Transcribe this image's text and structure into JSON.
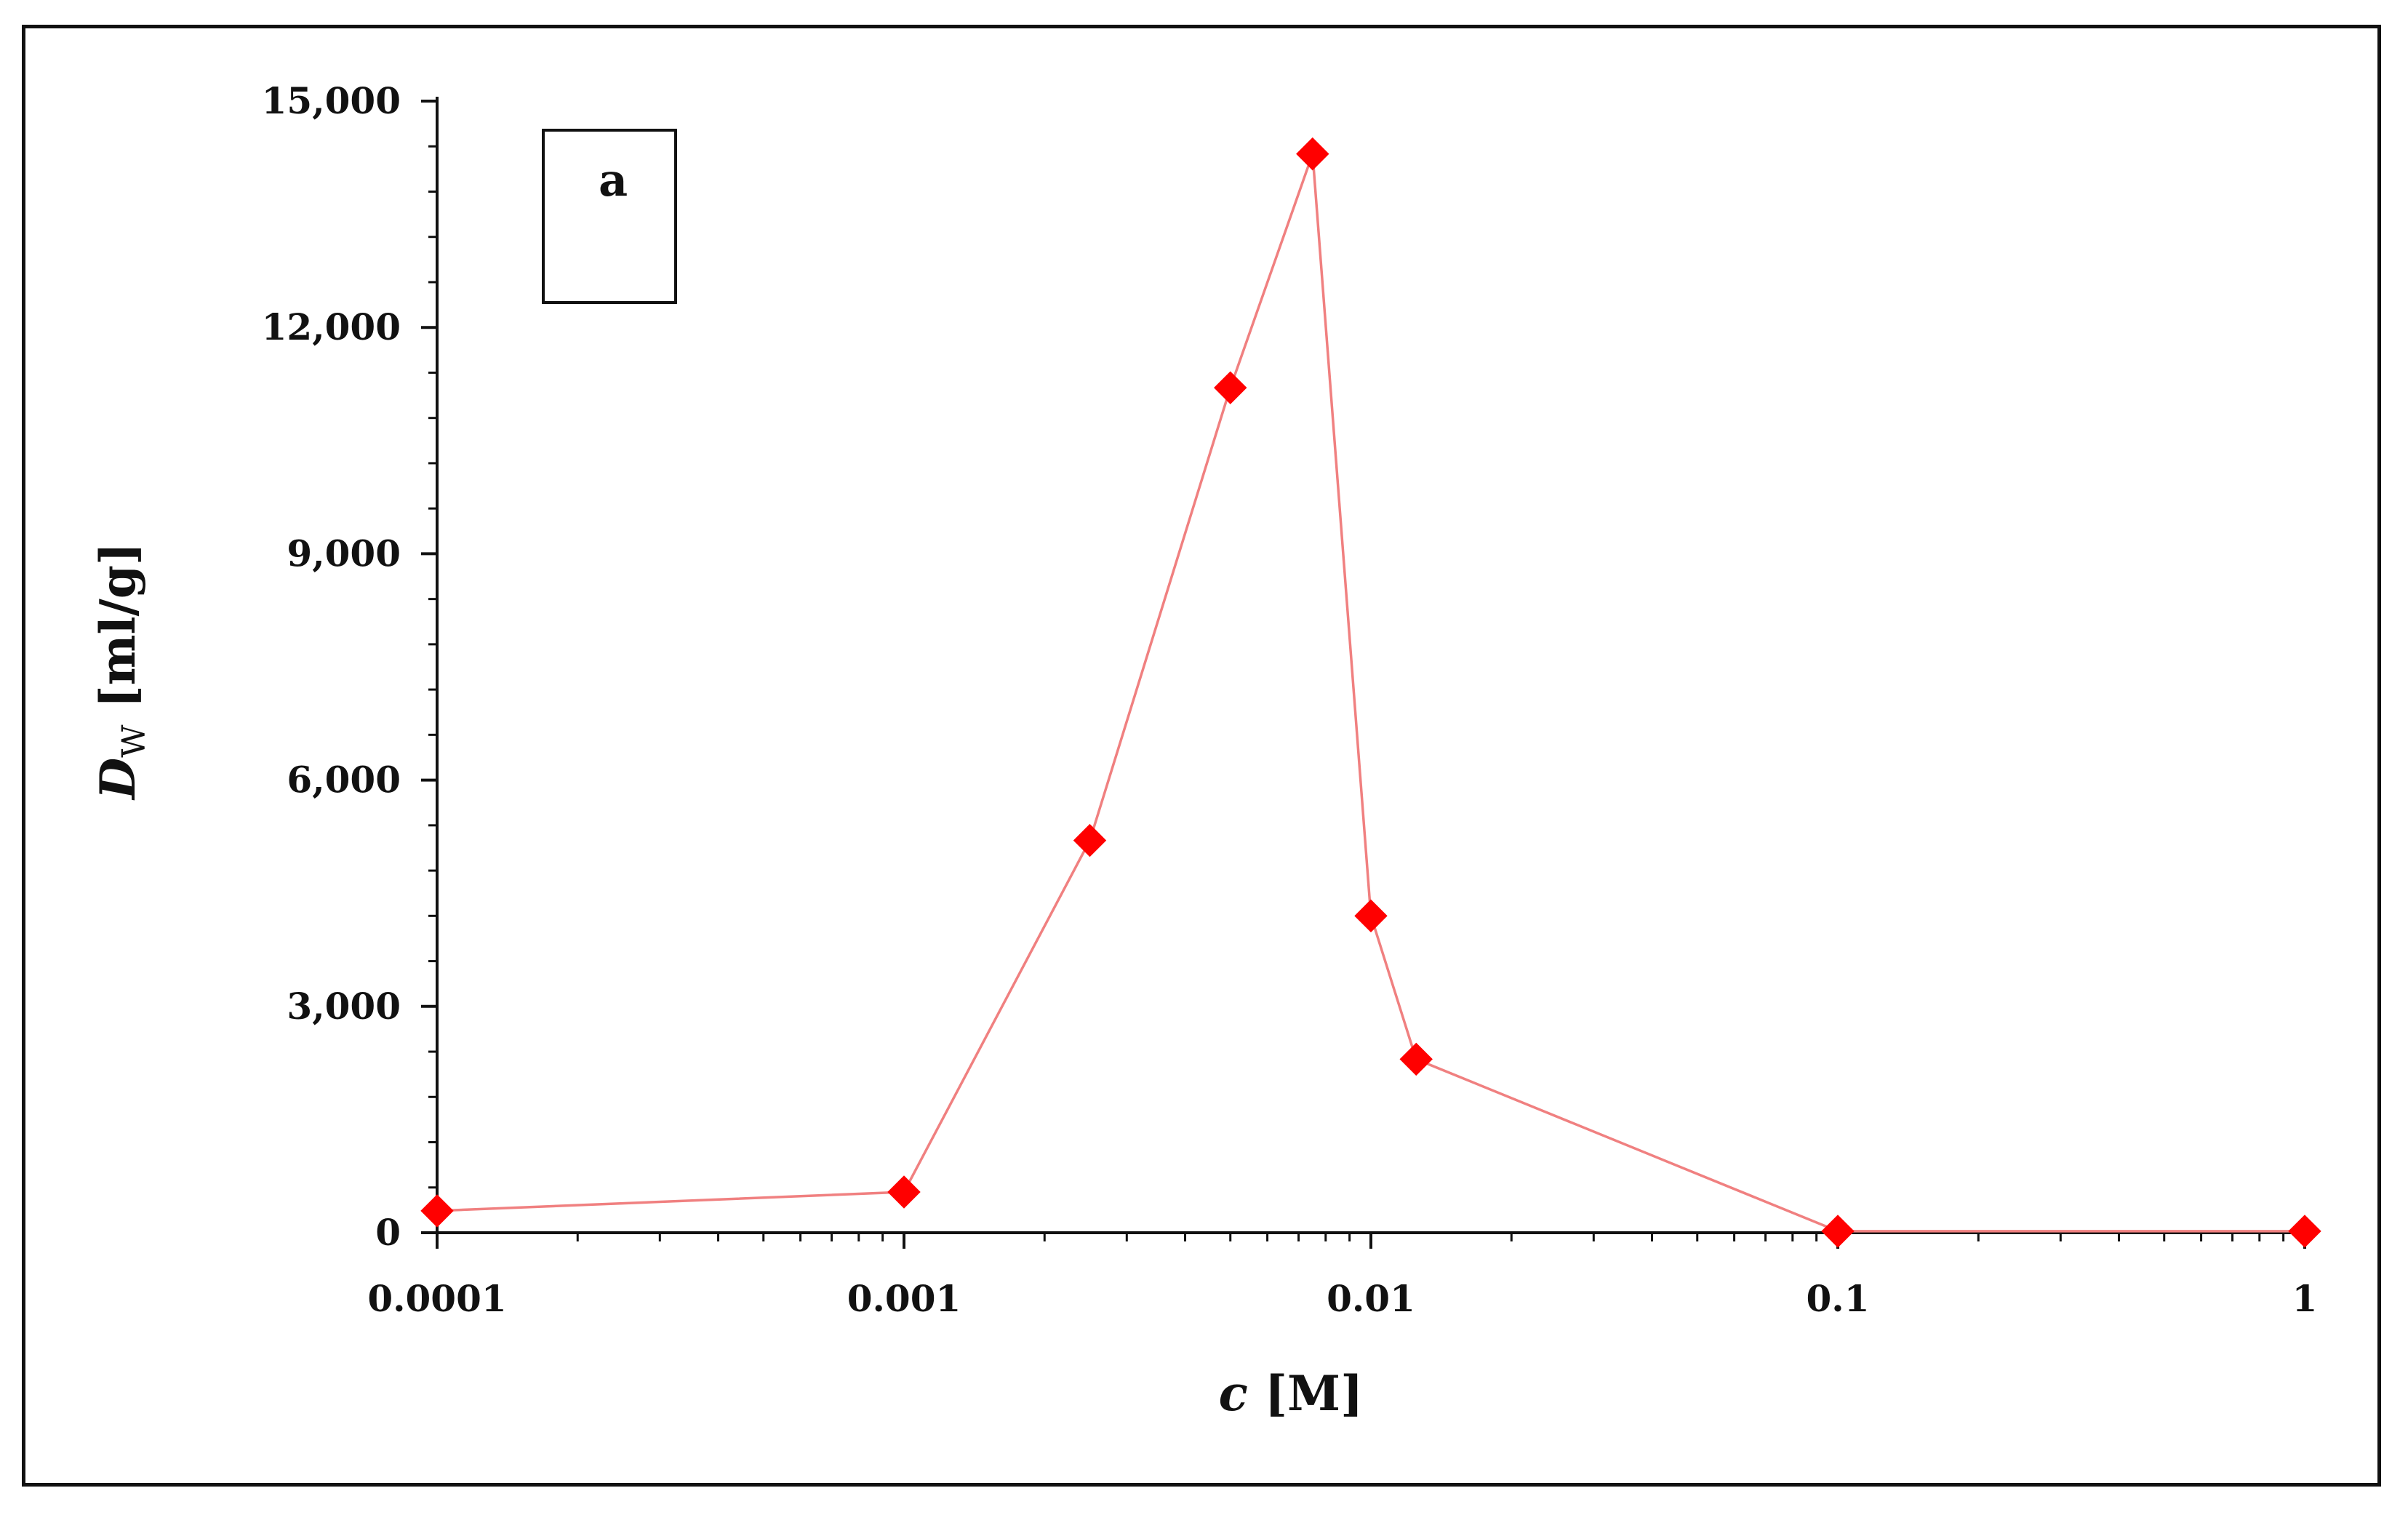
{
  "chart_data": {
    "type": "line",
    "title": "",
    "xlabel": {
      "italic": "c",
      "rest": "[M]"
    },
    "ylabel": {
      "italic": "D",
      "subscript": "W",
      "rest": "[ml/g]"
    },
    "x_scale": "log",
    "xlim": [
      0.0001,
      1
    ],
    "ylim": [
      0,
      15000
    ],
    "x_ticks": [
      0.0001,
      0.001,
      0.01,
      0.1,
      1
    ],
    "x_tick_labels": [
      "0.0001",
      "0.001",
      "0.01",
      "0.1",
      "1"
    ],
    "y_ticks": [
      0,
      3000,
      6000,
      9000,
      12000,
      15000
    ],
    "y_tick_labels": [
      "0",
      "3,000",
      "6,000",
      "9,000",
      "12,000",
      "15,000"
    ],
    "grid": false,
    "legend": null,
    "annotation": "a",
    "series": [
      {
        "color": "#ff0000",
        "line_color": "#f08080",
        "marker": "diamond",
        "x": [
          0.0001,
          0.001,
          0.0025,
          0.005,
          0.0075,
          0.01,
          0.0125,
          0.1,
          1
        ],
        "y": [
          290,
          540,
          5200,
          11200,
          14300,
          4200,
          2300,
          20,
          20
        ]
      }
    ]
  }
}
